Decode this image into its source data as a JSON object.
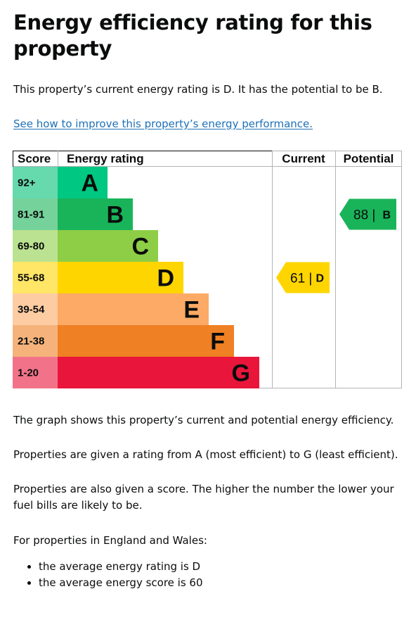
{
  "page": {
    "title": "Energy efficiency rating for this property",
    "intro": "This property’s current energy rating is D. It has the potential to be B.",
    "improve_link": "See how to improve this property’s energy performance.",
    "graph_note": "The graph shows this property’s current and potential energy efficiency.",
    "rating_note": "Properties are given a rating from A (most efficient) to G (least efficient).",
    "score_note": "Properties are also given a score. The higher the number the lower your fuel bills are likely to be.",
    "region_note": "For properties in England and Wales:",
    "averages": [
      "the average energy rating is D",
      "the average energy score is 60"
    ]
  },
  "chart_data": {
    "type": "table",
    "headers": {
      "score": "Score",
      "rating": "Energy rating",
      "current": "Current",
      "potential": "Potential"
    },
    "bands": [
      {
        "letter": "A",
        "score": "92+",
        "color": "#00c781",
        "score_bg": "#66d9ad"
      },
      {
        "letter": "B",
        "score": "81-91",
        "color": "#19b459",
        "score_bg": "#75d29b"
      },
      {
        "letter": "C",
        "score": "69-80",
        "color": "#8dce46",
        "score_bg": "#bbe290"
      },
      {
        "letter": "D",
        "score": "55-68",
        "color": "#ffd500",
        "score_bg": "#ffe666"
      },
      {
        "letter": "E",
        "score": "39-54",
        "color": "#fcaa65",
        "score_bg": "#fdcca3"
      },
      {
        "letter": "F",
        "score": "21-38",
        "color": "#ef8023",
        "score_bg": "#f5b37b"
      },
      {
        "letter": "G",
        "score": "1-20",
        "color": "#e9153b",
        "score_bg": "#f27389"
      }
    ],
    "current": {
      "value": 61,
      "letter": "D",
      "color": "#ffd500",
      "text_color": "#0b0c0c"
    },
    "potential": {
      "value": 88,
      "letter": "B",
      "color": "#19b459",
      "text_color": "#0b0c0c"
    }
  }
}
